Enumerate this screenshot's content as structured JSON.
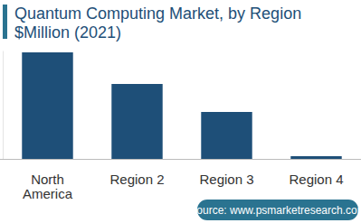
{
  "chart_data": {
    "type": "bar",
    "title": "Quantum Computing Market, by Region",
    "subtitle": "$Million (2021)",
    "categories": [
      "North America",
      "Region 2",
      "Region 3",
      "Region 4"
    ],
    "values": [
      118,
      83,
      52,
      3
    ],
    "color": "#1e4f78",
    "ylim": [
      0,
      120
    ],
    "tick_labels": "x",
    "grid": false,
    "source": "Source: www.psmarketresearch.com"
  }
}
